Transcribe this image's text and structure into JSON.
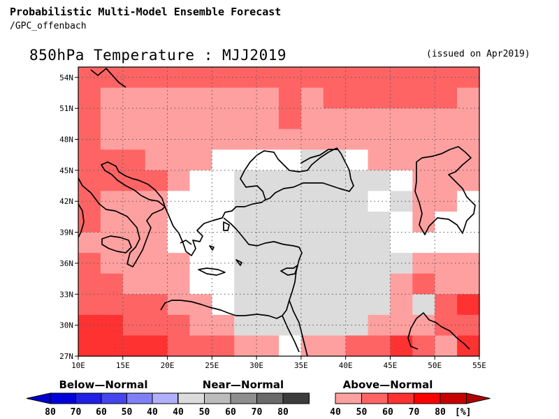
{
  "header": {
    "title": "Probabilistic Multi-Model Ensemble Forecast",
    "source": "/GPC_offenbach",
    "map_title": "850hPa Temperature : MJJ2019",
    "issued": "(issued on Apr2019)"
  },
  "axes": {
    "lon_ticks": [
      "10E",
      "15E",
      "20E",
      "25E",
      "30E",
      "35E",
      "40E",
      "45E",
      "50E",
      "55E"
    ],
    "lat_ticks": [
      "54N",
      "51N",
      "48N",
      "45N",
      "42N",
      "39N",
      "36N",
      "33N",
      "30N",
      "27N"
    ],
    "lon_range": [
      10,
      55
    ],
    "lat_range": [
      27,
      55
    ]
  },
  "legend": {
    "below": {
      "label": "Below—Normal",
      "ticks": [
        "80",
        "70",
        "60",
        "50",
        "40"
      ],
      "colors": [
        "#0000dd",
        "#1f1fe6",
        "#4545ef",
        "#8080f6",
        "#b0b0ff"
      ]
    },
    "near": {
      "label": "Near—Normal",
      "ticks": [
        "40",
        "50",
        "60",
        "70",
        "80"
      ],
      "colors": [
        "#dcdcdc",
        "#bcbcbc",
        "#8e8e8e",
        "#6a6a6a",
        "#3c3c3c"
      ]
    },
    "above": {
      "label": "Above—Normal",
      "ticks": [
        "40",
        "50",
        "60",
        "70",
        "80"
      ],
      "colors": [
        "#ffa0a0",
        "#ff6464",
        "#ff3232",
        "#ff0000",
        "#c80000"
      ],
      "unit": "[%]"
    }
  },
  "category_colors": {
    "a40": "#ffa0a0",
    "a50": "#ff6464",
    "a60": "#ff3232",
    "a70": "#ff0000",
    "n40": "#dcdcdc",
    "white": "#ffffff"
  },
  "grid": {
    "cols": 18,
    "rows": 14,
    "cells": [
      [
        "a50",
        "a50",
        "a50",
        "a50",
        "a50",
        "a50",
        "a50",
        "a50",
        "a50",
        "a50",
        "a50",
        "a50",
        "a50",
        "a50",
        "a50",
        "a50",
        "a50",
        "a50"
      ],
      [
        "a50",
        "a40",
        "a40",
        "a40",
        "a40",
        "a40",
        "a40",
        "a40",
        "a40",
        "a50",
        "a40",
        "a50",
        "a50",
        "a50",
        "a50",
        "a50",
        "a50",
        "a40"
      ],
      [
        "a50",
        "a40",
        "a40",
        "a40",
        "a40",
        "a40",
        "a40",
        "a40",
        "a40",
        "a50",
        "a40",
        "a40",
        "a40",
        "a40",
        "a40",
        "a40",
        "a40",
        "a40"
      ],
      [
        "a50",
        "a40",
        "a40",
        "a40",
        "a40",
        "a40",
        "a40",
        "a40",
        "a40",
        "a40",
        "a40",
        "a40",
        "a40",
        "a40",
        "a40",
        "a40",
        "a40",
        "a40"
      ],
      [
        "a50",
        "a50",
        "a50",
        "a40",
        "a40",
        "a40",
        "white",
        "white",
        "white",
        "white",
        "n40",
        "n40",
        "white",
        "a40",
        "a40",
        "a40",
        "a40",
        "a40"
      ],
      [
        "a50",
        "a50",
        "a50",
        "a50",
        "a40",
        "white",
        "white",
        "n40",
        "n40",
        "n40",
        "n40",
        "n40",
        "n40",
        "n40",
        "white",
        "a40",
        "a40",
        "a40"
      ],
      [
        "a50",
        "a40",
        "a40",
        "a40",
        "white",
        "white",
        "white",
        "n40",
        "n40",
        "n40",
        "n40",
        "n40",
        "n40",
        "white",
        "n40",
        "a40",
        "a40",
        "white"
      ],
      [
        "a50",
        "a40",
        "a40",
        "a40",
        "white",
        "white",
        "white",
        "n40",
        "n40",
        "n40",
        "n40",
        "n40",
        "n40",
        "n40",
        "white",
        "a40",
        "white",
        "white"
      ],
      [
        "a40",
        "a40",
        "a40",
        "a40",
        "white",
        "white",
        "white",
        "n40",
        "n40",
        "n40",
        "n40",
        "n40",
        "n40",
        "n40",
        "white",
        "white",
        "white",
        "white"
      ],
      [
        "a50",
        "a40",
        "a40",
        "a40",
        "a40",
        "white",
        "white",
        "n40",
        "n40",
        "n40",
        "n40",
        "n40",
        "n40",
        "n40",
        "n40",
        "a40",
        "a40",
        "a40"
      ],
      [
        "a50",
        "a50",
        "a40",
        "a40",
        "a40",
        "white",
        "white",
        "n40",
        "n40",
        "n40",
        "n40",
        "n40",
        "n40",
        "n40",
        "a40",
        "a50",
        "a40",
        "a40"
      ],
      [
        "a50",
        "a50",
        "a50",
        "a50",
        "a40",
        "a40",
        "white",
        "n40",
        "n40",
        "n40",
        "n40",
        "n40",
        "n40",
        "n40",
        "a40",
        "n40",
        "a50",
        "a60"
      ],
      [
        "a60",
        "a60",
        "a50",
        "a50",
        "a50",
        "a40",
        "a40",
        "n40",
        "n40",
        "n40",
        "n40",
        "n40",
        "n40",
        "a40",
        "a40",
        "a40",
        "a50",
        "a50"
      ],
      [
        "a60",
        "a60",
        "a60",
        "a60",
        "a50",
        "a50",
        "a50",
        "a40",
        "a40",
        "white",
        "a40",
        "a40",
        "a50",
        "a50",
        "a60",
        "a50",
        "a40",
        "a60"
      ]
    ]
  }
}
